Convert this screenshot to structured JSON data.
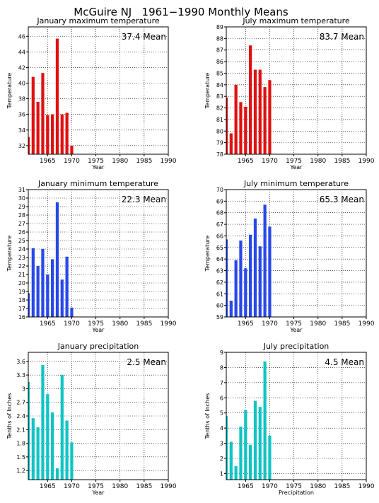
{
  "page_title": "McGuire NJ   1961−1990 Monthly Means",
  "colors": {
    "red": "#e01010",
    "blue": "#2848e8",
    "cyan": "#10c4c4",
    "grid": "#000000"
  },
  "chart_data": [
    {
      "type": "bar",
      "title": "January maximum temperature",
      "annotation": "37.4 Mean",
      "ylabel": "Temperature",
      "xlabel": "Year",
      "color": "red",
      "ylim": [
        30.9,
        47.2
      ],
      "yticks": [
        32,
        34,
        36,
        38,
        40,
        42,
        44,
        46
      ],
      "xlim": [
        1961,
        1990
      ],
      "xticks": [
        1965,
        1970,
        1975,
        1980,
        1985,
        1990
      ],
      "x": [
        1961,
        1962,
        1963,
        1964,
        1965,
        1966,
        1967,
        1968,
        1969,
        1970
      ],
      "values": [
        33.1,
        40.8,
        37.6,
        41.3,
        35.9,
        36.0,
        45.7,
        36.0,
        36.2,
        32.0
      ]
    },
    {
      "type": "bar",
      "title": "July maximum temperature",
      "annotation": "83.7 Mean",
      "ylabel": "Temperature",
      "xlabel": "Year",
      "color": "red",
      "ylim": [
        78,
        89
      ],
      "yticks": [
        78,
        79,
        80,
        81,
        82,
        83,
        84,
        85,
        86,
        87,
        88,
        89
      ],
      "xlim": [
        1961,
        1990
      ],
      "xticks": [
        1965,
        1970,
        1975,
        1980,
        1985,
        1990
      ],
      "x": [
        1961,
        1962,
        1963,
        1964,
        1965,
        1966,
        1967,
        1968,
        1969,
        1970
      ],
      "values": [
        82.9,
        79.8,
        84.0,
        82.5,
        82.1,
        87.4,
        85.3,
        85.3,
        83.8,
        84.4
      ]
    },
    {
      "type": "bar",
      "title": "January minimum temperature",
      "annotation": "22.3 Mean",
      "ylabel": "Temperature",
      "xlabel": "Year",
      "color": "blue",
      "ylim": [
        16,
        31
      ],
      "yticks": [
        16,
        17,
        18,
        19,
        20,
        21,
        22,
        23,
        24,
        25,
        26,
        27,
        28,
        29,
        30,
        31
      ],
      "xlim": [
        1961,
        1990
      ],
      "xticks": [
        1965,
        1970,
        1975,
        1980,
        1985,
        1990
      ],
      "x": [
        1961,
        1962,
        1963,
        1964,
        1965,
        1966,
        1967,
        1968,
        1969,
        1970
      ],
      "values": [
        18.8,
        24.1,
        22.0,
        24.0,
        21.0,
        22.8,
        29.5,
        20.4,
        23.1,
        17.1
      ]
    },
    {
      "type": "bar",
      "title": "July minimum temperature",
      "annotation": "65.3 Mean",
      "ylabel": "Temperature",
      "xlabel": "Year",
      "color": "blue",
      "ylim": [
        59,
        70
      ],
      "yticks": [
        59,
        60,
        61,
        62,
        63,
        64,
        65,
        66,
        67,
        68,
        69,
        70
      ],
      "xlim": [
        1961,
        1990
      ],
      "xticks": [
        1965,
        1970,
        1975,
        1980,
        1985,
        1990
      ],
      "x": [
        1961,
        1962,
        1963,
        1964,
        1965,
        1966,
        1967,
        1968,
        1969,
        1970
      ],
      "values": [
        65.7,
        60.4,
        63.9,
        65.6,
        63.2,
        66.1,
        67.5,
        65.1,
        68.7,
        66.8
      ]
    },
    {
      "type": "bar",
      "title": "January precipitation",
      "annotation": "2.5 Mean",
      "ylabel": "Tenths of Inches",
      "xlabel": "Year",
      "color": "cyan",
      "ylim": [
        1.0,
        3.8
      ],
      "yticks": [
        1.2,
        1.5,
        1.8,
        2.1,
        2.4,
        2.7,
        3.0,
        3.3,
        3.6
      ],
      "yticklabels": [
        "1.2",
        "1.5",
        "1.8",
        "2.1",
        "2.4",
        "2.7",
        "3",
        "3.3",
        "3.6"
      ],
      "xlim": [
        1961,
        1990
      ],
      "xticks": [
        1965,
        1970,
        1975,
        1980,
        1985,
        1990
      ],
      "x": [
        1961,
        1962,
        1963,
        1964,
        1965,
        1966,
        1967,
        1968,
        1969,
        1970
      ],
      "values": [
        3.15,
        2.35,
        2.15,
        3.52,
        2.88,
        2.48,
        1.25,
        3.3,
        2.3,
        1.82
      ]
    },
    {
      "type": "bar",
      "title": "July precipitation",
      "annotation": "4.5 Mean",
      "ylabel": "Tenths of Inches",
      "xlabel": "Precipitation",
      "color": "cyan",
      "ylim": [
        0.6,
        9
      ],
      "yticks": [
        1,
        2,
        3,
        4,
        5,
        6,
        7,
        8,
        9
      ],
      "xlim": [
        1961,
        1990
      ],
      "xticks": [
        1965,
        1970,
        1975,
        1980,
        1985,
        1990
      ],
      "x": [
        1961,
        1962,
        1963,
        1964,
        1965,
        1966,
        1967,
        1968,
        1969,
        1970
      ],
      "values": [
        4.8,
        3.1,
        1.5,
        4.1,
        5.2,
        2.9,
        5.8,
        5.4,
        8.4,
        3.5
      ]
    }
  ]
}
